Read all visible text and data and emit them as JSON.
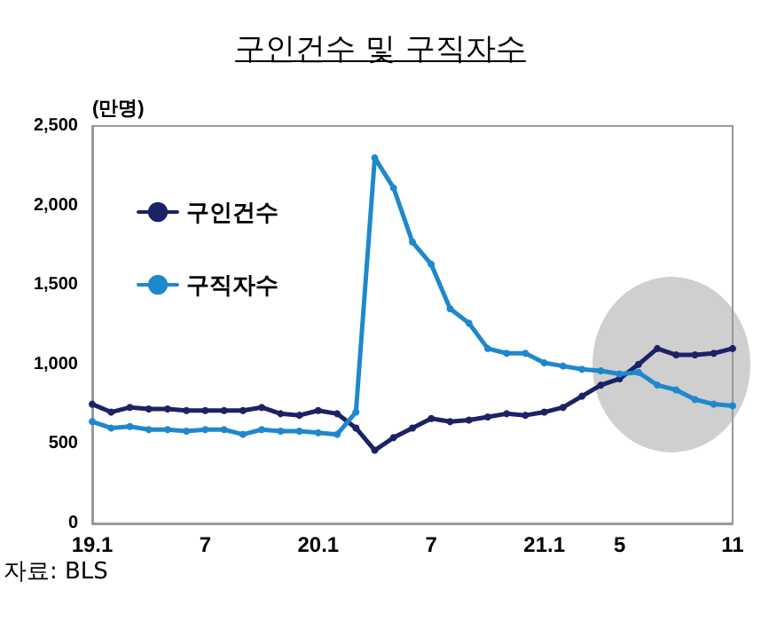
{
  "chart_data": {
    "type": "line",
    "title": "구인건수 및 구직자수",
    "ylabel": "(만명)",
    "categories": [
      "19.1",
      null,
      null,
      null,
      null,
      null,
      "7",
      null,
      null,
      null,
      null,
      null,
      "20.1",
      null,
      null,
      null,
      null,
      null,
      "7",
      null,
      null,
      null,
      null,
      null,
      "21.1",
      null,
      null,
      null,
      "5",
      null,
      null,
      null,
      null,
      null,
      "11"
    ],
    "series": [
      {
        "name": "구인건수",
        "color": "#1b2266",
        "values": [
          750,
          700,
          730,
          720,
          720,
          710,
          710,
          710,
          710,
          730,
          690,
          680,
          710,
          690,
          600,
          460,
          540,
          600,
          660,
          640,
          650,
          670,
          690,
          680,
          700,
          730,
          800,
          870,
          910,
          1000,
          1100,
          1060,
          1060,
          1070,
          1100
        ]
      },
      {
        "name": "구직자수",
        "color": "#1f88cc",
        "values": [
          640,
          600,
          610,
          590,
          590,
          580,
          590,
          590,
          560,
          590,
          580,
          580,
          570,
          560,
          700,
          2300,
          2110,
          1770,
          1630,
          1350,
          1260,
          1100,
          1070,
          1070,
          1010,
          990,
          970,
          960,
          940,
          950,
          870,
          840,
          780,
          750,
          740
        ]
      }
    ],
    "ylim": [
      0,
      2500
    ],
    "yticks": [
      {
        "value": 0,
        "label": "0"
      },
      {
        "value": 500,
        "label": "500"
      },
      {
        "value": 1000,
        "label": "1,000"
      },
      {
        "value": 1500,
        "label": "1,500"
      },
      {
        "value": 2000,
        "label": "2,000"
      },
      {
        "value": 2500,
        "label": "2,500"
      }
    ],
    "grid": false,
    "legend": "top left",
    "marker": "circle",
    "line_style": "solid",
    "annotations": [
      "자료: BLS"
    ]
  }
}
